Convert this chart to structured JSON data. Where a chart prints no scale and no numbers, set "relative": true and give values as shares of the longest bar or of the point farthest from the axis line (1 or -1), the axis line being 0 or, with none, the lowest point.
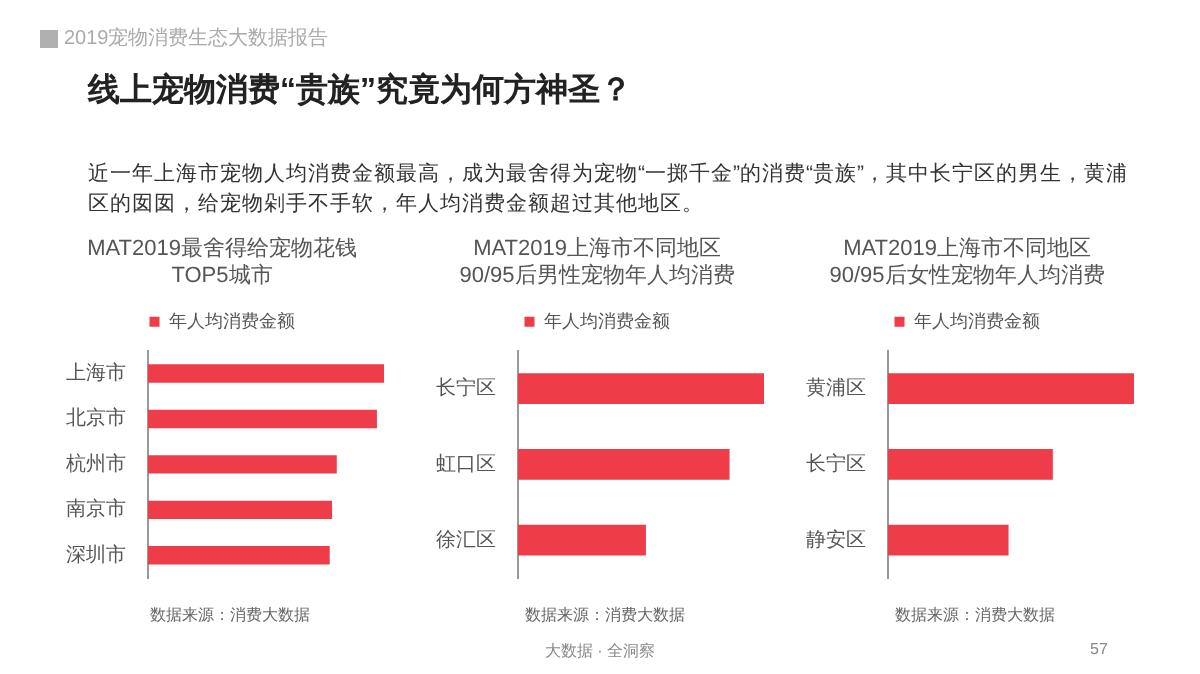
{
  "chart_data": [
    {
      "type": "other",
      "title": "线上宠物消费“贵族”究竟为何方神圣？",
      "subtitle": "近一年上海市宠物人均消费金额最高，成为最舍得为宠物“一掷千金”的消费“贵族”，其中长宁区的男生，黄浦区的囡囡，给宠物剁手不手软，年人均消费金额超过其他地区。",
      "annotations": [
        "2019宠物消费生态大数据报告",
        "大数据 · 全洞察",
        "57"
      ]
    },
    {
      "type": "bar",
      "orientation": "horizontal",
      "relative": true,
      "title": "MAT2019最舍得给宠物花钱\nTOP5城市",
      "categories": [
        "上海市",
        "北京市",
        "杭州市",
        "南京市",
        "深圳市"
      ],
      "legend": "top",
      "series": [
        {
          "name": "年人均消费金额",
          "color": "#ee3d48",
          "values": [
            1,
            0.97,
            0.8,
            0.78,
            0.77
          ]
        }
      ],
      "annotations": [
        "数据来源：消费大数据"
      ]
    },
    {
      "type": "bar",
      "orientation": "horizontal",
      "relative": true,
      "title": "MAT2019上海市不同地区\n90/95后男性宠物年人均消费",
      "categories": [
        "长宁区",
        "虹口区",
        "徐汇区"
      ],
      "legend": "top",
      "series": [
        {
          "name": "年人均消费金额",
          "color": "#ee3d48",
          "values": [
            1,
            0.86,
            0.52
          ]
        }
      ],
      "annotations": [
        "数据来源：消费大数据"
      ]
    },
    {
      "type": "bar",
      "orientation": "horizontal",
      "relative": true,
      "title": "MAT2019上海市不同地区\n90/95后女性宠物年人均消费",
      "categories": [
        "黄浦区",
        "长宁区",
        "静安区"
      ],
      "legend": "top",
      "series": [
        {
          "name": "年人均消费金额",
          "color": "#ee3d48",
          "values": [
            1,
            0.67,
            0.49
          ]
        }
      ],
      "annotations": [
        "数据来源：消费大数据"
      ]
    }
  ]
}
